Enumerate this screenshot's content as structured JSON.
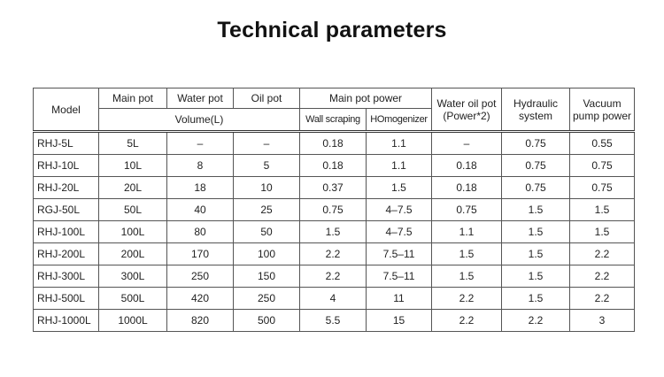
{
  "title": "Technical parameters",
  "table": {
    "header": [
      "Model",
      "Main pot",
      "Water pot",
      "Oil pot",
      "Main pot power",
      "Water oil pot\n(Power*2)",
      "Hydraulic\nsystem",
      "Vacuum\npump power"
    ],
    "subheader": [
      "Volume(L)",
      "Wall scraping",
      "HOmogenizer"
    ],
    "rows": [
      [
        "RHJ-5L",
        "5L",
        "–",
        "–",
        "0.18",
        "1.1",
        "–",
        "0.75",
        "0.55"
      ],
      [
        "RHJ-10L",
        "10L",
        "8",
        "5",
        "0.18",
        "1.1",
        "0.18",
        "0.75",
        "0.75"
      ],
      [
        "RHJ-20L",
        "20L",
        "18",
        "10",
        "0.37",
        "1.5",
        "0.18",
        "0.75",
        "0.75"
      ],
      [
        "RGJ-50L",
        "50L",
        "40",
        "25",
        "0.75",
        "4–7.5",
        "0.75",
        "1.5",
        "1.5"
      ],
      [
        "RHJ-100L",
        "100L",
        "80",
        "50",
        "1.5",
        "4–7.5",
        "1.1",
        "1.5",
        "1.5"
      ],
      [
        "RHJ-200L",
        "200L",
        "170",
        "100",
        "2.2",
        "7.5–11",
        "1.5",
        "1.5",
        "2.2"
      ],
      [
        "RHJ-300L",
        "300L",
        "250",
        "150",
        "2.2",
        "7.5–11",
        "1.5",
        "1.5",
        "2.2"
      ],
      [
        "RHJ-500L",
        "500L",
        "420",
        "250",
        "4",
        "11",
        "2.2",
        "1.5",
        "2.2"
      ],
      [
        "RHJ-1000L",
        "1000L",
        "820",
        "500",
        "5.5",
        "15",
        "2.2",
        "2.2",
        "3"
      ]
    ]
  }
}
